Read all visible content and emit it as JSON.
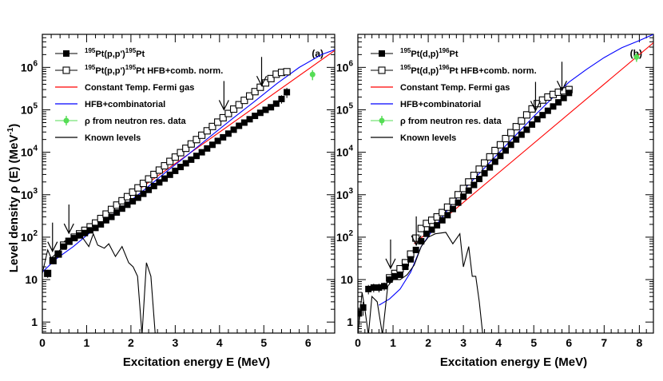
{
  "figure": {
    "ylabel": "Level density ρ (E) (MeV",
    "ylabel_sup": "-1",
    "ylabel_end": ")"
  },
  "chart_data": [
    {
      "type": "scatter",
      "panel": "(a)",
      "xlabel": "Excitation energy E (MeV)",
      "ylabel": "Level density ρ (E) (MeV-1)",
      "xlim": [
        0,
        6.6
      ],
      "ylim": [
        0.55,
        6000000
      ],
      "yscale": "log",
      "x_ticks": [
        0,
        1,
        2,
        3,
        4,
        5,
        6
      ],
      "x_tick_labels": [
        "0",
        "1",
        "2",
        "3",
        "4",
        "5",
        "6"
      ],
      "y_ticks": [
        1,
        10,
        100,
        1000,
        10000,
        100000,
        1000000
      ],
      "y_tick_labels": [
        {
          "base": "1",
          "exp": ""
        },
        {
          "base": "10",
          "exp": ""
        },
        {
          "base": "10",
          "exp": "2"
        },
        {
          "base": "10",
          "exp": "3"
        },
        {
          "base": "10",
          "exp": "4"
        },
        {
          "base": "10",
          "exp": "5"
        },
        {
          "base": "10",
          "exp": "6"
        }
      ],
      "legend": [
        {
          "key": "data",
          "pre": "195",
          "mid1": "Pt(p,p')",
          "sup2": "195",
          "end": "Pt",
          "style": "filled-square",
          "color": "#000000"
        },
        {
          "key": "norm",
          "pre": "195",
          "mid1": "Pt(p,p')",
          "sup2": "195",
          "end": "Pt HFB+comb. norm.",
          "style": "open-square",
          "color": "#000000"
        },
        {
          "key": "ctf",
          "text": "Constant Temp. Fermi gas",
          "style": "line",
          "color": "#ff0000"
        },
        {
          "key": "hfb",
          "text": "HFB+combinatorial",
          "style": "line",
          "color": "#0000ff"
        },
        {
          "key": "rho",
          "text": "ρ from neutron res. data",
          "style": "dot",
          "color": "#55dd55"
        },
        {
          "key": "known",
          "text": "Known levels",
          "style": "line",
          "color": "#000000"
        }
      ],
      "series": [
        {
          "name": "195Pt(p,p')195Pt",
          "style": "filled-square",
          "x": [
            0.12,
            0.24,
            0.36,
            0.48,
            0.6,
            0.72,
            0.84,
            0.96,
            1.08,
            1.2,
            1.32,
            1.44,
            1.56,
            1.68,
            1.8,
            1.92,
            2.04,
            2.16,
            2.28,
            2.4,
            2.52,
            2.64,
            2.76,
            2.88,
            3.0,
            3.12,
            3.24,
            3.36,
            3.48,
            3.6,
            3.72,
            3.84,
            3.96,
            4.08,
            4.2,
            4.32,
            4.44,
            4.56,
            4.68,
            4.8,
            4.92,
            5.04,
            5.16,
            5.28,
            5.4,
            5.52
          ],
          "y": [
            14,
            28,
            40,
            60,
            80,
            95,
            110,
            125,
            145,
            165,
            200,
            250,
            300,
            380,
            470,
            580,
            700,
            850,
            1050,
            1300,
            1600,
            1950,
            2400,
            2950,
            3650,
            4500,
            5500,
            6700,
            8200,
            10000,
            12300,
            15000,
            18500,
            22500,
            27500,
            34000,
            42000,
            50000,
            60000,
            72000,
            85000,
            100000,
            115000,
            140000,
            180000,
            260000
          ],
          "yerr": [
            3,
            5,
            6,
            8,
            9,
            10,
            12,
            14,
            16,
            18,
            20,
            25,
            30,
            35,
            40,
            50,
            60,
            70,
            80,
            100,
            120,
            140,
            160,
            200,
            250,
            300,
            350,
            400,
            500,
            600,
            700,
            800,
            1000,
            1200,
            1500,
            1800,
            2200,
            2700,
            3300,
            4000,
            6000,
            8000,
            12000,
            20000,
            40000,
            70000
          ]
        },
        {
          "name": "195Pt(p,p')195Pt HFB+comb. norm.",
          "style": "open-square",
          "x": [
            0.12,
            0.24,
            0.36,
            0.48,
            0.6,
            0.72,
            0.84,
            0.96,
            1.08,
            1.2,
            1.32,
            1.44,
            1.56,
            1.68,
            1.8,
            1.92,
            2.04,
            2.16,
            2.28,
            2.4,
            2.52,
            2.64,
            2.76,
            2.88,
            3.0,
            3.12,
            3.24,
            3.36,
            3.48,
            3.6,
            3.72,
            3.84,
            3.96,
            4.08,
            4.2,
            4.32,
            4.44,
            4.56,
            4.68,
            4.8,
            4.92,
            5.04,
            5.16,
            5.28,
            5.4,
            5.52
          ],
          "y": [
            14,
            28,
            40,
            65,
            80,
            100,
            120,
            145,
            175,
            215,
            275,
            350,
            450,
            570,
            720,
            900,
            1150,
            1450,
            1850,
            2350,
            3000,
            3800,
            4800,
            6100,
            7700,
            9800,
            12400,
            15700,
            19900,
            25200,
            32000,
            40500,
            51300,
            65000,
            82000,
            104000,
            132000,
            167000,
            212000,
            268000,
            340000,
            430000,
            545000,
            690000,
            760000,
            790000
          ]
        },
        {
          "name": "Constant Temp. Fermi gas",
          "style": "line",
          "color": "#ff0000",
          "x": [
            1.3,
            6.6
          ],
          "y": [
            300,
            2500000
          ]
        },
        {
          "name": "HFB+combinatorial",
          "style": "line",
          "color": "#0000ff",
          "x": [
            0,
            0.3,
            0.7,
            1.0,
            1.3,
            1.8,
            2.3,
            2.8,
            3.3,
            3.8,
            4.3,
            4.8,
            5.3,
            5.8,
            6.3,
            6.6
          ],
          "y": [
            15,
            30,
            60,
            110,
            200,
            500,
            1300,
            3500,
            9000,
            24000,
            63000,
            160000,
            420000,
            1000000,
            2000000,
            2600000
          ]
        },
        {
          "name": "ρ from neutron res. data",
          "style": "dot",
          "color": "#55dd55",
          "x": [
            6.1
          ],
          "y": [
            680000
          ],
          "yerr": [
            180000
          ]
        },
        {
          "name": "Known levels",
          "style": "line",
          "color": "#000000",
          "x": [
            0.0,
            0.12,
            0.2,
            0.3,
            0.4,
            0.5,
            0.6,
            0.75,
            0.9,
            1.05,
            1.15,
            1.25,
            1.4,
            1.5,
            1.65,
            1.8,
            1.95,
            2.05,
            2.15,
            2.25,
            2.35,
            2.45,
            2.55
          ],
          "y": [
            14,
            50,
            32,
            40,
            50,
            80,
            90,
            100,
            100,
            60,
            120,
            65,
            55,
            70,
            35,
            60,
            25,
            20,
            12,
            0.5,
            25,
            12,
            0.5
          ]
        }
      ],
      "arrows": [
        {
          "x": 0.23,
          "y_value": 30
        },
        {
          "x": 0.6,
          "y_value": 80
        },
        {
          "x": 4.1,
          "y_value": 65000
        },
        {
          "x": 4.95,
          "y_value": 240000
        }
      ]
    },
    {
      "type": "scatter",
      "panel": "(b)",
      "xlabel": "Excitation energy E (MeV)",
      "ylabel": "Level density ρ (E) (MeV-1)",
      "xlim": [
        0,
        8.4
      ],
      "ylim": [
        0.55,
        6000000
      ],
      "yscale": "log",
      "x_ticks": [
        0,
        1,
        2,
        3,
        4,
        5,
        6,
        7,
        8
      ],
      "x_tick_labels": [
        "0",
        "1",
        "2",
        "3",
        "4",
        "5",
        "6",
        "7",
        "8"
      ],
      "y_ticks": [
        1,
        10,
        100,
        1000,
        10000,
        100000,
        1000000
      ],
      "y_tick_labels": [
        {
          "base": "1",
          "exp": ""
        },
        {
          "base": "10",
          "exp": ""
        },
        {
          "base": "10",
          "exp": "2"
        },
        {
          "base": "10",
          "exp": "3"
        },
        {
          "base": "10",
          "exp": "4"
        },
        {
          "base": "10",
          "exp": "5"
        },
        {
          "base": "10",
          "exp": "6"
        }
      ],
      "legend": [
        {
          "key": "data",
          "pre": "195",
          "mid1": "Pt(d,p)",
          "sup2": "196",
          "end": "Pt",
          "style": "filled-square",
          "color": "#000000"
        },
        {
          "key": "norm",
          "pre": "195",
          "mid1": "Pt(d,p)",
          "sup2": "196",
          "end": "Pt HFB+comb. norm.",
          "style": "open-square",
          "color": "#000000"
        },
        {
          "key": "ctf",
          "text": "Constant Temp. Fermi gas",
          "style": "line",
          "color": "#ff0000"
        },
        {
          "key": "hfb",
          "text": "HFB+combinatorial",
          "style": "line",
          "color": "#0000ff"
        },
        {
          "key": "rho",
          "text": "ρ from neutron res. data",
          "style": "dot",
          "color": "#55dd55"
        },
        {
          "key": "known",
          "text": "Known levels",
          "style": "line",
          "color": "#000000"
        }
      ],
      "series": [
        {
          "name": "195Pt(d,p)196Pt",
          "style": "filled-square",
          "x": [
            0.03,
            0.15,
            0.3,
            0.45,
            0.6,
            0.75,
            0.9,
            1.05,
            1.2,
            1.35,
            1.5,
            1.65,
            1.8,
            1.95,
            2.1,
            2.25,
            2.4,
            2.55,
            2.7,
            2.85,
            3.0,
            3.15,
            3.3,
            3.45,
            3.6,
            3.75,
            3.9,
            4.05,
            4.2,
            4.35,
            4.5,
            4.65,
            4.8,
            4.95,
            5.1,
            5.25,
            5.4,
            5.55,
            5.7,
            5.85,
            6.0
          ],
          "y": [
            1.6,
            2.2,
            6,
            6.5,
            6.5,
            7,
            10,
            12,
            13,
            20,
            30,
            50,
            80,
            120,
            150,
            190,
            250,
            330,
            460,
            650,
            900,
            1250,
            1700,
            2350,
            3200,
            4400,
            6000,
            8200,
            11000,
            15000,
            20000,
            26000,
            34000,
            45000,
            60000,
            75000,
            95000,
            120000,
            150000,
            190000,
            250000
          ],
          "yerr": [
            0.6,
            0.8,
            1.5,
            1.5,
            1.5,
            1.5,
            2,
            2,
            2,
            3,
            4,
            6,
            8,
            10,
            12,
            15,
            18,
            20,
            25,
            30,
            40,
            50,
            60,
            80,
            100,
            150,
            200,
            250,
            300,
            400,
            500,
            700,
            900,
            1200,
            1500,
            2000,
            2500,
            3000,
            4000,
            6000,
            9000
          ]
        },
        {
          "name": "195Pt(d,p)196Pt HFB+comb. norm.",
          "style": "open-square",
          "x": [
            0.9,
            1.05,
            1.2,
            1.35,
            1.5,
            1.65,
            1.8,
            1.95,
            2.1,
            2.25,
            2.4,
            2.55,
            2.7,
            2.85,
            3.0,
            3.15,
            3.3,
            3.45,
            3.6,
            3.75,
            3.9,
            4.05,
            4.2,
            4.35,
            4.5,
            4.65,
            4.8,
            4.95,
            5.1,
            5.25,
            5.4,
            5.55,
            5.7,
            5.85,
            6.0
          ],
          "y": [
            11,
            14,
            18,
            25,
            40,
            95,
            160,
            210,
            250,
            300,
            380,
            510,
            700,
            1000,
            1400,
            2000,
            2850,
            4000,
            5600,
            7800,
            11000,
            15000,
            21000,
            29000,
            40000,
            55000,
            76000,
            105000,
            140000,
            170000,
            200000,
            230000,
            260000,
            280000,
            300000
          ]
        },
        {
          "name": "Constant Temp. Fermi gas",
          "style": "line",
          "color": "#ff0000",
          "x": [
            1.6,
            8.4
          ],
          "y": [
            70,
            3800000
          ]
        },
        {
          "name": "HFB+combinatorial",
          "style": "line",
          "color": "#0000ff",
          "x": [
            0.6,
            0.9,
            1.2,
            1.5,
            1.8,
            2.2,
            2.6,
            3.0,
            3.5,
            4.0,
            4.5,
            5.0,
            5.5,
            6.0,
            6.5,
            7.0,
            7.5,
            8.0,
            8.4
          ],
          "y": [
            2.5,
            3.5,
            6,
            15,
            60,
            180,
            500,
            1300,
            3500,
            9500,
            26000,
            70000,
            180000,
            450000,
            900000,
            1700000,
            2900000,
            4300000,
            6000000
          ]
        },
        {
          "name": "ρ from neutron res. data",
          "style": "dot",
          "color": "#55dd55",
          "x": [
            7.92
          ],
          "y": [
            1750000
          ],
          "yerr": [
            400000
          ]
        },
        {
          "name": "Known levels",
          "style": "line",
          "color": "#000000",
          "x": [
            0.0,
            0.12,
            0.2,
            0.3,
            0.4,
            0.55,
            0.7,
            0.85,
            1.0,
            1.2,
            1.4,
            1.6,
            1.8,
            2.0,
            2.2,
            2.5,
            2.7,
            2.9,
            3.0,
            3.15,
            3.25,
            3.35,
            3.45,
            3.55
          ],
          "y": [
            0.5,
            5,
            2,
            0.5,
            4,
            3,
            0.5,
            7,
            10,
            10,
            13,
            22,
            60,
            100,
            120,
            130,
            70,
            120,
            20,
            60,
            12,
            12,
            3,
            0.5
          ]
        }
      ],
      "arrows": [
        {
          "x": 0.93,
          "y_value": 12
        },
        {
          "x": 1.66,
          "y_value": 42
        },
        {
          "x": 5.05,
          "y_value": 62000
        },
        {
          "x": 5.8,
          "y_value": 185000
        }
      ]
    }
  ]
}
